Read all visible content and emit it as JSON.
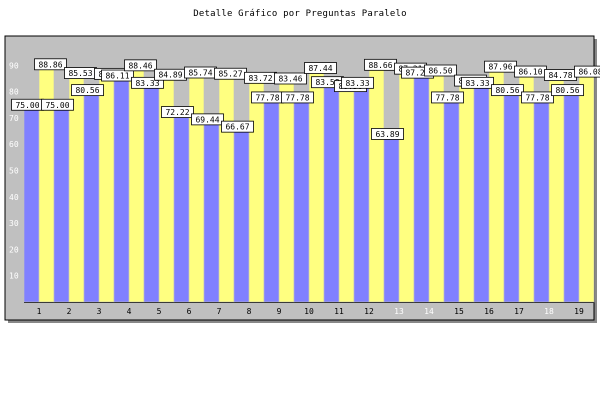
{
  "chart_data": {
    "type": "bar",
    "title": "Detalle Gráfico por Preguntas Paralelo",
    "xlabel": "",
    "ylabel": "",
    "ylim": [
      0,
      100
    ],
    "yticks": [
      10,
      20,
      30,
      40,
      50,
      60,
      70,
      80,
      90
    ],
    "grid": false,
    "legend": "none",
    "categories": [
      "1",
      "2",
      "3",
      "4",
      "5",
      "6",
      "7",
      "8",
      "9",
      "10",
      "11",
      "12",
      "13",
      "14",
      "15",
      "16",
      "17",
      "18",
      "19"
    ],
    "highlight_categories": [
      "13",
      "14",
      "18"
    ],
    "series": [
      {
        "color": "#8080ff",
        "values": [
          75.0,
          75.0,
          80.56,
          86.11,
          83.33,
          72.22,
          69.44,
          66.67,
          77.78,
          77.78,
          83.58,
          83.33,
          63.89,
          87.21,
          77.78,
          83.33,
          80.56,
          77.78,
          80.56
        ],
        "labels": [
          "75.00",
          "75.00",
          "80.56",
          "86.11",
          "83.33",
          "72.22",
          "69.44",
          "66.67",
          "77.78",
          "77.78",
          "83.58",
          "83.33",
          "63.89",
          "87.21",
          "77.78",
          "83.33",
          "80.56",
          "77.78",
          "80.56"
        ]
      },
      {
        "color": "#ffff80",
        "values": [
          88.86,
          85.53,
          85.22,
          88.46,
          84.89,
          85.74,
          85.27,
          83.72,
          83.46,
          87.44,
          80.56,
          88.66,
          87.21,
          86.5,
          82.67,
          87.96,
          86.1,
          84.78,
          86.08
        ],
        "labels": [
          "88.86",
          "85.53",
          "85.22",
          "88.46",
          "84.89",
          "85.74",
          "85.27",
          "83.72",
          "83.46",
          "87.44",
          "80.56",
          "88.66",
          "87.21",
          "86.50",
          "82.67",
          "87.96",
          "86.10",
          "84.78",
          "86.08"
        ]
      }
    ],
    "colors": {
      "plot_background": "#c0c0c0",
      "bar_outline": "#c0c0c0",
      "label_box": "#ffffff",
      "tick_label_highlight": "#ffffff"
    }
  }
}
